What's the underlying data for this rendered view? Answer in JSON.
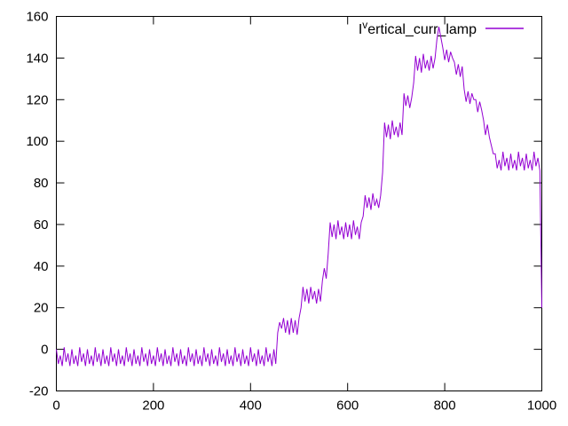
{
  "chart_data": {
    "type": "line",
    "title": "",
    "xlabel": "",
    "ylabel": "",
    "xlim": [
      0,
      1000
    ],
    "ylim": [
      -20,
      160
    ],
    "x_ticks": [
      0,
      200,
      400,
      600,
      800,
      1000
    ],
    "y_ticks": [
      -20,
      0,
      20,
      40,
      60,
      80,
      100,
      120,
      140,
      160
    ],
    "grid": "off",
    "legend_position": "top-right-inside",
    "series_color": "#9400d3",
    "border_color": "#000000",
    "legend": {
      "prefix": "I",
      "superscript": "v",
      "rest": "ertical_curr_lamp"
    },
    "series": [
      {
        "name": "Ivertical_curr_lamp",
        "x_start": 0,
        "x_step": 4,
        "values": [
          0,
          -7,
          -3,
          -8,
          1,
          -6,
          -2,
          -8,
          0,
          -7,
          -3,
          -8,
          1,
          -6,
          -2,
          -8,
          0,
          -7,
          -3,
          -8,
          1,
          -6,
          -2,
          -8,
          0,
          -7,
          -3,
          -8,
          1,
          -6,
          -2,
          -8,
          0,
          -7,
          -3,
          -8,
          1,
          -6,
          -2,
          -8,
          0,
          -7,
          -3,
          -8,
          1,
          -6,
          -2,
          -8,
          0,
          -7,
          -3,
          -8,
          1,
          -6,
          -2,
          -8,
          0,
          -7,
          -3,
          -8,
          1,
          -6,
          -2,
          -8,
          0,
          -7,
          -3,
          -8,
          1,
          -6,
          -2,
          -8,
          0,
          -7,
          -3,
          -8,
          1,
          -6,
          -2,
          -8,
          0,
          -7,
          -3,
          -8,
          1,
          -6,
          -2,
          -8,
          0,
          -7,
          -3,
          -8,
          1,
          -6,
          -2,
          -8,
          0,
          -7,
          -3,
          -8,
          1,
          -6,
          -2,
          -8,
          0,
          -7,
          -3,
          -8,
          1,
          -6,
          -2,
          -8,
          0,
          -7,
          8,
          13,
          10,
          15,
          8,
          14,
          7,
          15,
          8,
          14,
          7,
          15,
          20,
          30,
          23,
          29,
          22,
          30,
          24,
          28,
          22,
          29,
          23,
          33,
          39,
          34,
          46,
          61,
          54,
          60,
          53,
          62,
          55,
          59,
          53,
          61,
          54,
          60,
          53,
          62,
          55,
          59,
          53,
          61,
          64,
          74,
          68,
          73,
          67,
          75,
          69,
          72,
          68,
          74,
          85,
          109,
          102,
          108,
          101,
          110,
          103,
          107,
          102,
          109,
          103,
          123,
          117,
          122,
          116,
          121,
          128,
          141,
          134,
          140,
          133,
          142,
          135,
          139,
          134,
          141,
          135,
          140,
          149,
          155,
          150,
          145,
          139,
          144,
          138,
          143,
          140,
          138,
          132,
          137,
          131,
          136,
          125,
          119,
          124,
          118,
          123,
          120,
          120,
          114,
          119,
          115,
          110,
          103,
          108,
          102,
          98,
          94,
          94,
          87,
          91,
          86,
          95,
          88,
          92,
          86,
          94,
          87,
          91,
          86,
          95,
          88,
          92,
          86,
          94,
          87,
          91,
          86,
          95,
          88,
          92,
          86,
          20
        ]
      }
    ]
  }
}
